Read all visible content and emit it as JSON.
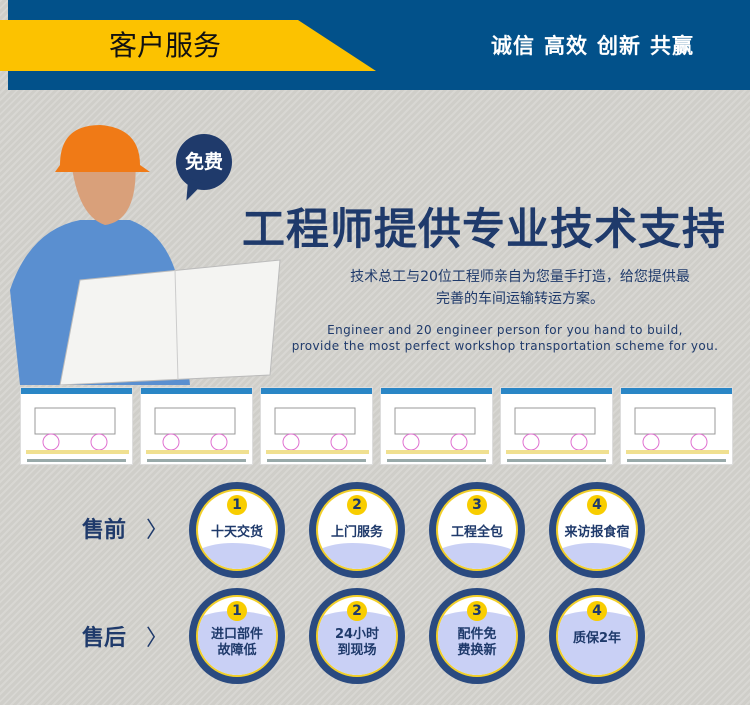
{
  "header": {
    "title": "客户服务",
    "slogans": [
      "诚信",
      "高效",
      "创新",
      "共赢"
    ]
  },
  "hero": {
    "badge": "免费",
    "headline": "工程师提供专业技术支持",
    "description": [
      "技术总工与20位工程师亲自为您量手打造，给您提供最",
      "完善的车间运输转运方案。"
    ],
    "english": [
      "Engineer and 20 engineer person for you hand to build,",
      "provide the most perfect workshop transportation scheme for you."
    ]
  },
  "diagram_count": 6,
  "presale": {
    "label": "售前",
    "items": [
      {
        "num": "1",
        "text": "十天交货"
      },
      {
        "num": "2",
        "text": "上门服务"
      },
      {
        "num": "3",
        "text": "工程全包"
      },
      {
        "num": "4",
        "text": "来访报食宿"
      }
    ]
  },
  "aftersale": {
    "label": "售后",
    "items": [
      {
        "num": "1",
        "text": "进口部件\n故障低"
      },
      {
        "num": "2",
        "text": "24小时\n到现场"
      },
      {
        "num": "3",
        "text": "配件免\n费换新"
      },
      {
        "num": "4",
        "text": "质保2年"
      }
    ]
  },
  "colors": {
    "header": "#02518a",
    "banner": "#fcc200",
    "navy": "#1f3a6b",
    "wave": "#c9d0f5"
  }
}
